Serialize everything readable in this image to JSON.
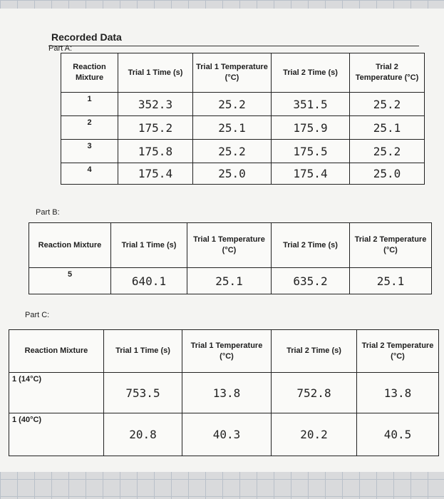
{
  "header": {
    "title": "Recorded Data"
  },
  "parts": [
    {
      "label": "Part A:",
      "columns": [
        "Reaction Mixture",
        "Trial 1 Time (s)",
        "Trial 1 Temperature (°C)",
        "Trial 2 Time (s)",
        "Trial 2 Temperature (°C)"
      ],
      "rows": [
        [
          "1",
          "352.3",
          "25.2",
          "351.5",
          "25.2"
        ],
        [
          "2",
          "175.2",
          "25.1",
          "175.9",
          "25.1"
        ],
        [
          "3",
          "175.8",
          "25.2",
          "175.5",
          "25.2"
        ],
        [
          "4",
          "175.4",
          "25.0",
          "175.4",
          "25.0"
        ]
      ]
    },
    {
      "label": "Part B:",
      "columns": [
        "Reaction Mixture",
        "Trial 1 Time (s)",
        "Trial 1 Temperature (°C)",
        "Trial 2 Time (s)",
        "Trial 2 Temperature (°C)"
      ],
      "rows": [
        [
          "5",
          "640.1",
          "25.1",
          "635.2",
          "25.1"
        ]
      ]
    },
    {
      "label": "Part C:",
      "columns": [
        "Reaction Mixture",
        "Trial 1 Time (s)",
        "Trial 1 Temperature (°C)",
        "Trial 2 Time (s)",
        "Trial 2 Temperature (°C)"
      ],
      "rows": [
        [
          "1 (14°C)",
          "753.5",
          "13.8",
          "752.8",
          "13.8"
        ],
        [
          "1 (40°C)",
          "20.8",
          "40.3",
          "20.2",
          "40.5"
        ]
      ]
    }
  ]
}
